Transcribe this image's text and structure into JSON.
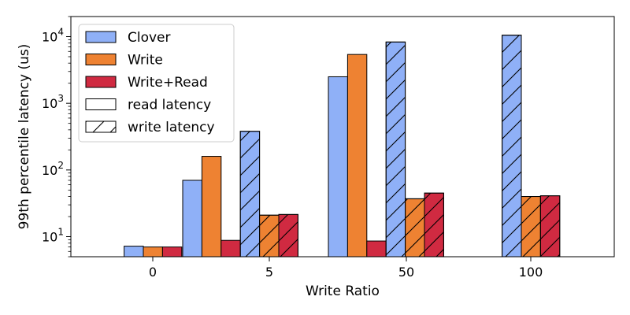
{
  "chart_data": {
    "type": "bar",
    "title": "",
    "xlabel": "Write Ratio",
    "ylabel": "99th percentile latency (us)",
    "yscale": "log",
    "ylim": [
      5,
      20000
    ],
    "y_ticks": [
      {
        "value": 10,
        "base": "10",
        "exp": "1"
      },
      {
        "value": 100,
        "base": "10",
        "exp": "2"
      },
      {
        "value": 1000,
        "base": "10",
        "exp": "3"
      },
      {
        "value": 10000,
        "base": "10",
        "exp": "4"
      }
    ],
    "categories": [
      "0",
      "5",
      "50",
      "100"
    ],
    "colors": {
      "Clover": "#8fb0f7",
      "Write": "#ee8232",
      "Write+Read": "#d02a41"
    },
    "series": [
      {
        "name": "Clover",
        "metric": "read latency",
        "values": [
          7.2,
          70,
          2500,
          null
        ]
      },
      {
        "name": "Write",
        "metric": "read latency",
        "values": [
          7.0,
          160,
          5400,
          null
        ]
      },
      {
        "name": "Write+Read",
        "metric": "read latency",
        "values": [
          7.0,
          8.8,
          8.6,
          null
        ]
      },
      {
        "name": "Clover",
        "metric": "write latency",
        "values": [
          null,
          380,
          8300,
          10500
        ]
      },
      {
        "name": "Write",
        "metric": "write latency",
        "values": [
          null,
          21,
          37,
          40
        ]
      },
      {
        "name": "Write+Read",
        "metric": "write latency",
        "values": [
          null,
          21.5,
          45,
          41
        ]
      }
    ],
    "legend": {
      "placement": "top-left",
      "entries": [
        {
          "label": "Clover",
          "color": "#8fb0f7",
          "hatch": false
        },
        {
          "label": "Write",
          "color": "#ee8232",
          "hatch": false
        },
        {
          "label": "Write+Read",
          "color": "#d02a41",
          "hatch": false
        },
        {
          "label": "read latency",
          "color": "#ffffff",
          "hatch": false
        },
        {
          "label": "write latency",
          "color": "#ffffff",
          "hatch": true
        }
      ]
    },
    "grid": false
  }
}
